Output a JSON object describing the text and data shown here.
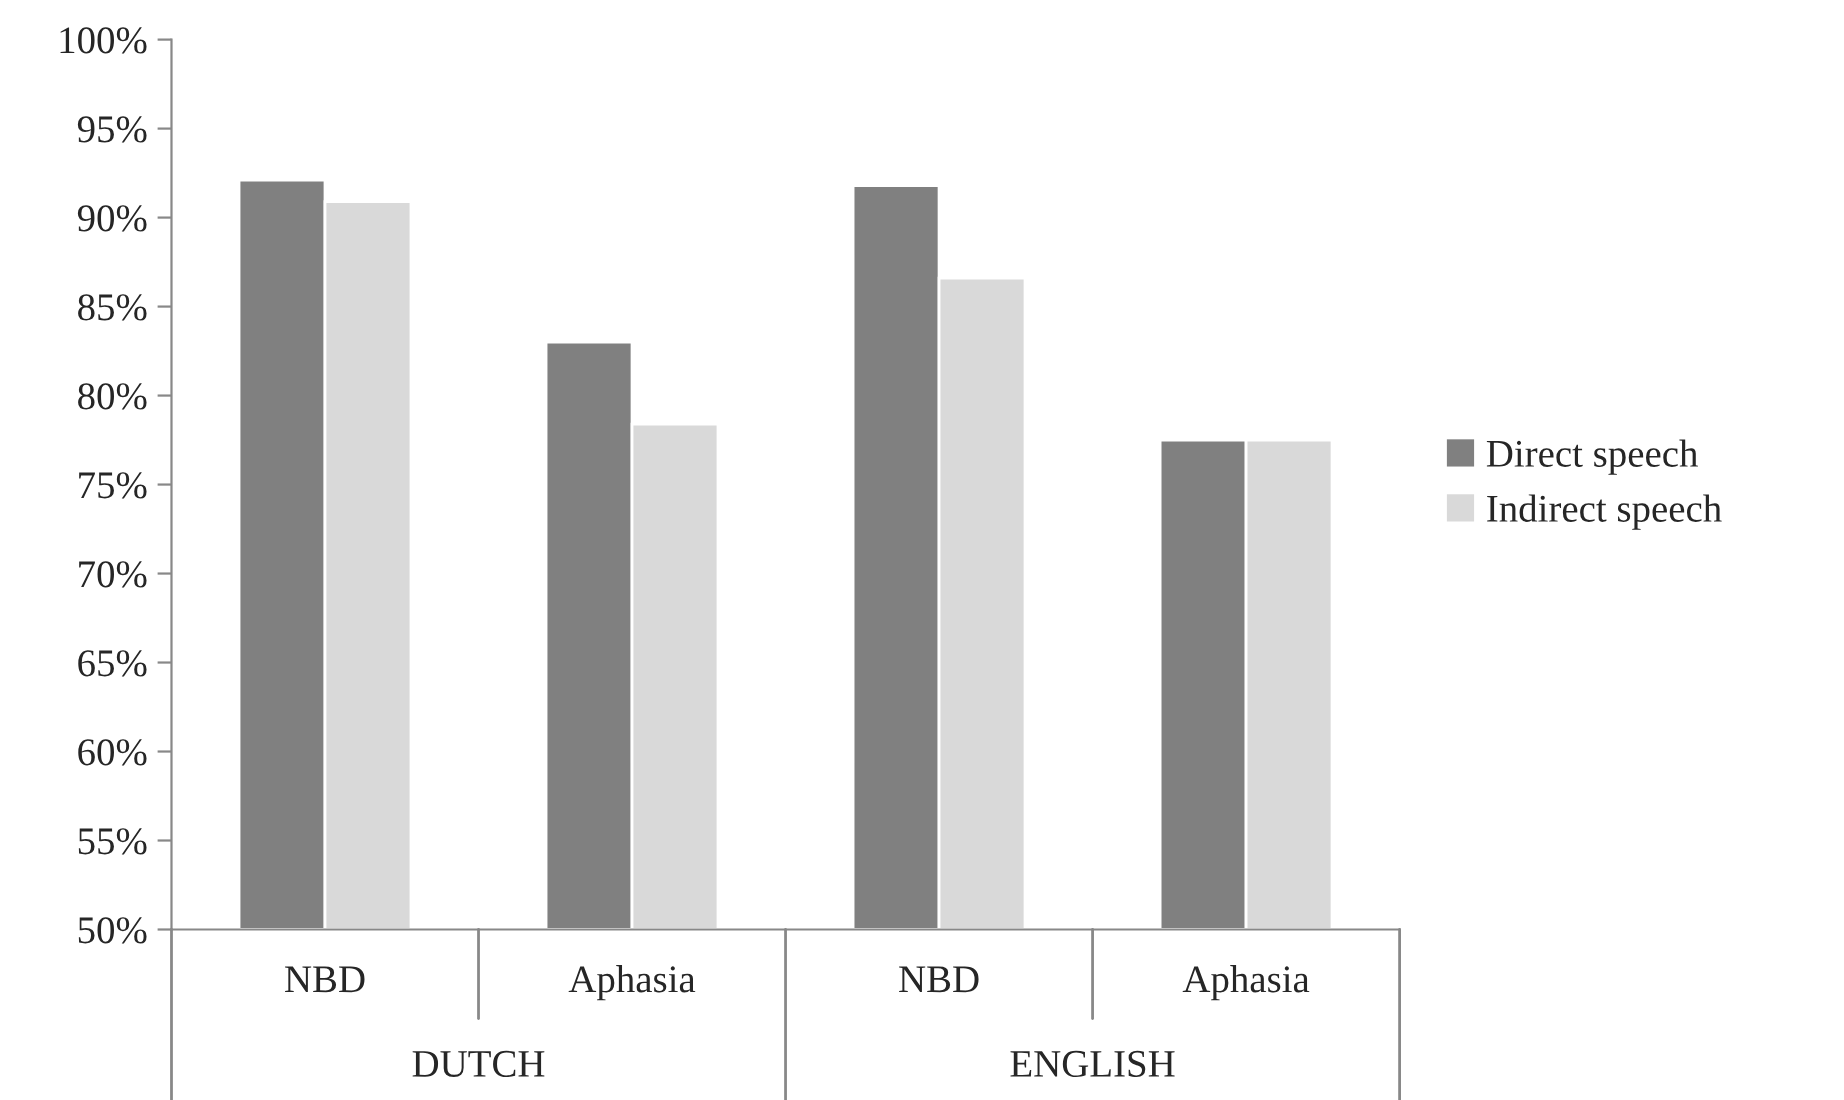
{
  "chart_data": {
    "type": "bar",
    "categories": [
      "NBD",
      "Aphasia",
      "NBD",
      "Aphasia"
    ],
    "series": [
      {
        "name": "Direct speech",
        "color": "#808080",
        "values": [
          92.1,
          83.0,
          91.8,
          77.5
        ]
      },
      {
        "name": "Indirect speech",
        "color": "#d9d9d9",
        "values": [
          90.9,
          78.4,
          86.6,
          77.5
        ]
      }
    ],
    "ylim": [
      50,
      100
    ],
    "yticks": [
      {
        "value": 50,
        "label": "50%"
      },
      {
        "value": 55,
        "label": "55%"
      },
      {
        "value": 60,
        "label": "60%"
      },
      {
        "value": 65,
        "label": "65%"
      },
      {
        "value": 70,
        "label": "70%"
      },
      {
        "value": 75,
        "label": "75%"
      },
      {
        "value": 80,
        "label": "80%"
      },
      {
        "value": 85,
        "label": "85%"
      },
      {
        "value": 90,
        "label": "90%"
      },
      {
        "value": 95,
        "label": "95%"
      },
      {
        "value": 100,
        "label": "100%"
      }
    ],
    "annotations": [
      "DUTCH",
      "ENGLISH"
    ],
    "grid": false,
    "legend": "right"
  }
}
